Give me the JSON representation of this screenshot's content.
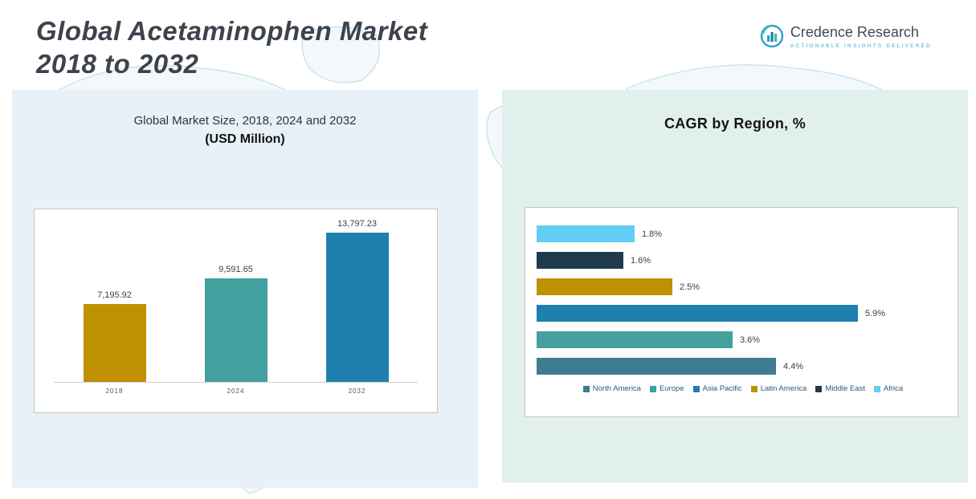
{
  "header": {
    "title_line1": "Global Acetaminophen Market",
    "title_line2": "2018 to 2032",
    "logo": {
      "name": "Credence Research",
      "tagline": "Actionable Insights Delivered"
    }
  },
  "left_panel": {
    "subtitle_line1": "Global Market Size, 2018, 2024 and 2032",
    "subtitle_line2": "(USD Million)"
  },
  "right_panel": {
    "title": "CAGR by Region, %"
  },
  "colors": {
    "gold": "#bf9000",
    "teal": "#449f9f",
    "blue": "#1f7fae",
    "light_blue": "#63cdf5",
    "navy": "#203a4e",
    "steel_blue": "#3f7b92"
  },
  "chart_data": [
    {
      "type": "bar",
      "title": "Global Market Size, 2018, 2024 and 2032 (USD Million)",
      "categories": [
        "2018",
        "2024",
        "2032"
      ],
      "values": [
        7195.92,
        9591.65,
        13797.23
      ],
      "data_labels": [
        "7,195.92",
        "9,591.65",
        "13,797.23"
      ],
      "colors": [
        "#bf9000",
        "#449f9f",
        "#1f7fae"
      ],
      "xlabel": "",
      "ylabel": "",
      "ylim": [
        0,
        13797.23
      ],
      "grid": false,
      "legend_position": "none"
    },
    {
      "type": "bar",
      "orientation": "horizontal",
      "title": "CAGR by Region, %",
      "categories": [
        "Africa",
        "Middle East",
        "Latin America",
        "Asia Pacific",
        "Europe",
        "North America"
      ],
      "values": [
        1.8,
        1.6,
        2.5,
        5.9,
        3.6,
        4.4
      ],
      "data_labels": [
        "1.8%",
        "1.6%",
        "2.5%",
        "5.9%",
        "3.6%",
        "4.4%"
      ],
      "colors": [
        "#63cdf5",
        "#203a4e",
        "#bf9000",
        "#1f7fae",
        "#449f9f",
        "#3f7b92"
      ],
      "xlim": [
        0,
        6.2
      ],
      "grid": false,
      "legend_position": "bottom",
      "legend": [
        {
          "label": "North America",
          "color": "#3f7b92"
        },
        {
          "label": "Europe",
          "color": "#449f9f"
        },
        {
          "label": "Asia Pacific",
          "color": "#1f7fae"
        },
        {
          "label": "Latin America",
          "color": "#bf9000"
        },
        {
          "label": "Middle East",
          "color": "#203a4e"
        },
        {
          "label": "Africa",
          "color": "#63cdf5"
        }
      ]
    }
  ]
}
